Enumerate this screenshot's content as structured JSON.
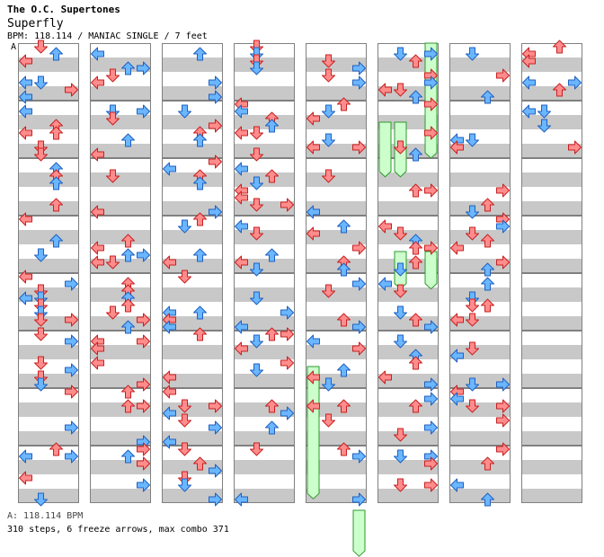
{
  "header": {
    "artist": "The O.C. Supertones",
    "song": "Superfly",
    "info": "BPM: 118.114 / MANIAC SINGLE / 7 feet",
    "marker": "A"
  },
  "footer": {
    "bpm": "A: 118.114 BPM",
    "stats": "310 steps, 6 freeze arrows, max combo 371"
  },
  "colors": {
    "quarter_fill": "#ff8c8c",
    "quarter_stroke": "#c82020",
    "eighth_fill": "#6ab6ff",
    "eighth_stroke": "#2060c0",
    "freeze_fill": "#ccffcc",
    "freeze_stroke": "#2e9a2e",
    "stripe": "#c8c8c8",
    "measure_border": "#808080"
  },
  "chart": {
    "columns": 8,
    "measures_per_column": 8,
    "lanes": [
      "left",
      "down",
      "up",
      "right"
    ],
    "arrow_icons": [
      "arrow-left-icon",
      "arrow-down-icon",
      "arrow-up-icon",
      "arrow-right-icon"
    ]
  }
}
